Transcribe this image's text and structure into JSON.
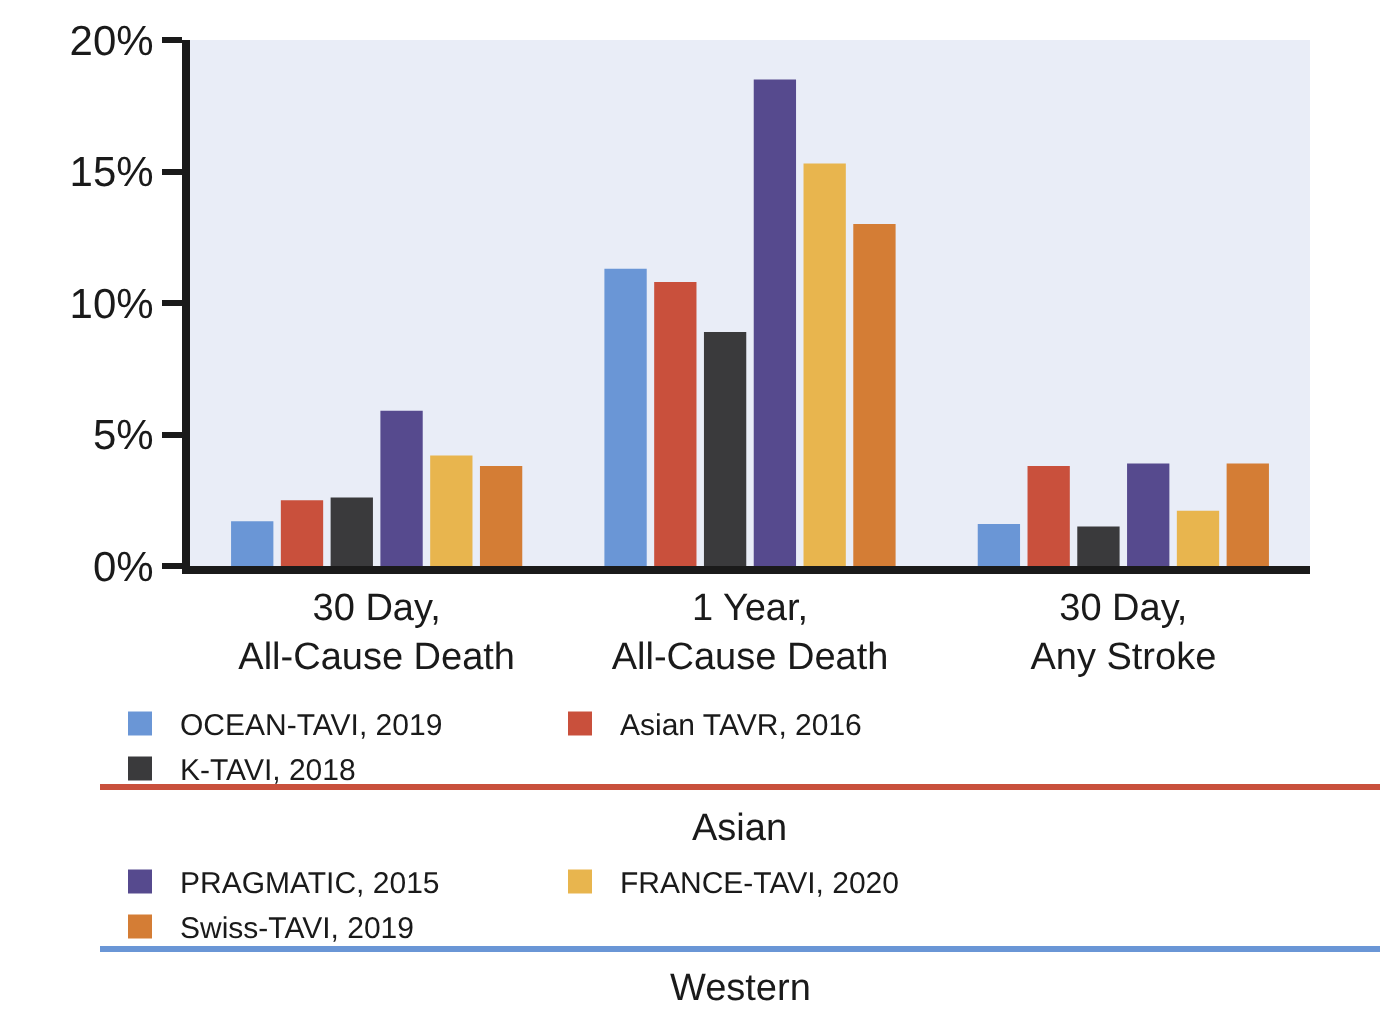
{
  "chart_data": {
    "type": "bar",
    "categories": [
      "30 Day,\nAll-Cause Death",
      "1 Year,\nAll-Cause Death",
      "30 Day,\nAny Stroke"
    ],
    "series": [
      {
        "name": "OCEAN-TAVI, 2019",
        "color": "#6a96d6",
        "values": [
          1.7,
          11.3,
          1.6
        ]
      },
      {
        "name": "Asian TAVR, 2016",
        "color": "#c9503c",
        "values": [
          2.5,
          10.8,
          3.8
        ]
      },
      {
        "name": "K-TAVI, 2018",
        "color": "#3a3a3c",
        "values": [
          2.6,
          8.9,
          1.5
        ]
      },
      {
        "name": "PRAGMATIC, 2015",
        "color": "#564a8e",
        "values": [
          5.9,
          18.5,
          3.9
        ]
      },
      {
        "name": "FRANCE-TAVI, 2020",
        "color": "#e8b54e",
        "values": [
          4.2,
          15.3,
          2.1
        ]
      },
      {
        "name": "Swiss-TAVI, 2019",
        "color": "#d47d35",
        "values": [
          3.8,
          13.0,
          3.9
        ]
      }
    ],
    "ylim": [
      0,
      20
    ],
    "yticks": [
      {
        "value": 0,
        "label": "0%"
      },
      {
        "value": 5,
        "label": "5%"
      },
      {
        "value": 10,
        "label": "10%"
      },
      {
        "value": 15,
        "label": "15%"
      },
      {
        "value": 20,
        "label": "20%"
      }
    ],
    "grid": false,
    "legend": "bottom",
    "annotations": [
      "Asian",
      "Western"
    ]
  }
}
